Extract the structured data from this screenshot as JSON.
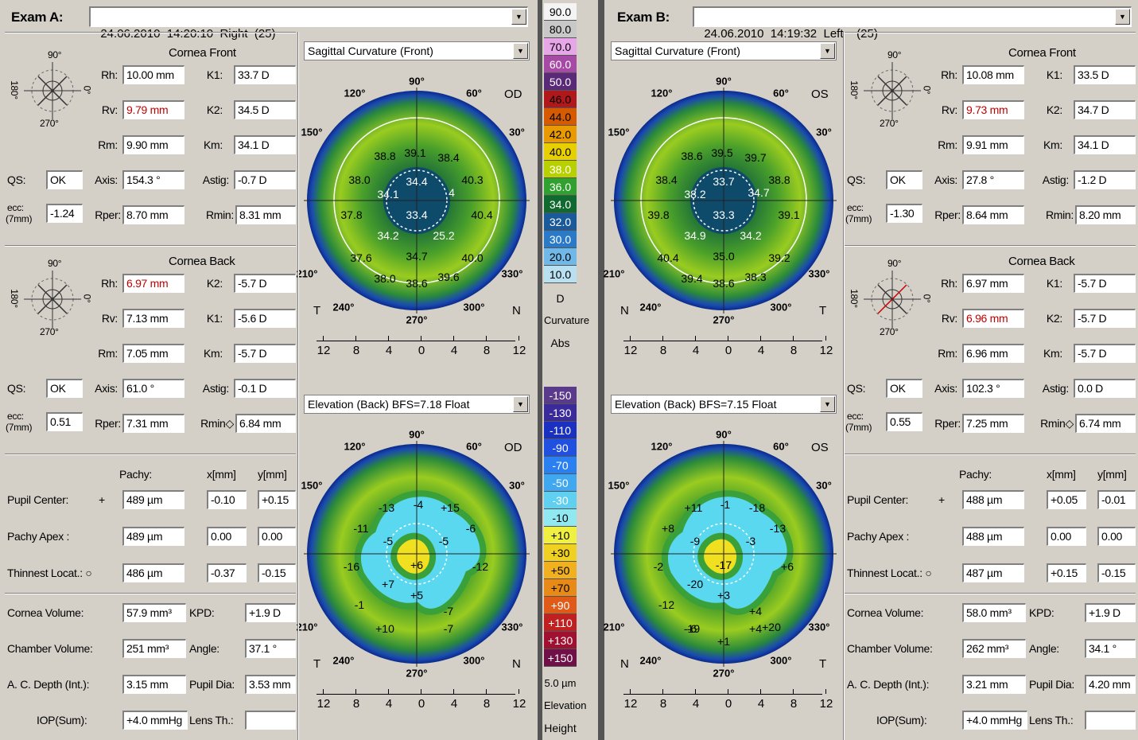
{
  "exam_a": {
    "label": "Exam A:",
    "selector": "24.06.2010  14:20:10  Right  (25)",
    "map_top": "Sagittal Curvature (Front)",
    "map_bottom": "Elevation (Back)  BFS=7.18 Float",
    "eye": "OD",
    "left_side": "T",
    "right_side": "N",
    "cornea_front": {
      "title": "Cornea Front",
      "rh_label": "Rh:",
      "rh": "10.00 mm",
      "k1_label": "K1:",
      "k1": "33.7 D",
      "rv_label": "Rv:",
      "rv": "9.79 mm",
      "k2_label": "K2:",
      "k2": "34.5 D",
      "rm_label": "Rm:",
      "rm": "9.90 mm",
      "km_label": "Km:",
      "km": "34.1 D",
      "qs_label": "QS:",
      "qs": "OK",
      "axis_label": "Axis:",
      "axis": "154.3 °",
      "astig_label": "Astig:",
      "astig": "-0.7 D",
      "ecc_label": "ecc:",
      "ecc_sub": "(7mm)",
      "ecc": "-1.24",
      "rper_label": "Rper:",
      "rper": "8.70 mm",
      "rmin_label": "Rmin:",
      "rmin": "8.31 mm"
    },
    "cornea_back": {
      "title": "Cornea Back",
      "rh_label": "Rh:",
      "rh": "6.97 mm",
      "k1_label": "K2:",
      "k1": "-5.7 D",
      "rv_label": "Rv:",
      "rv": "7.13 mm",
      "k2_label": "K1:",
      "k2": "-5.6 D",
      "rm_label": "Rm:",
      "rm": "7.05 mm",
      "km_label": "Km:",
      "km": "-5.7 D",
      "qs_label": "QS:",
      "qs": "OK",
      "axis_label": "Axis:",
      "axis": "61.0 °",
      "astig_label": "Astig:",
      "astig": "-0.1 D",
      "ecc_label": "ecc:",
      "ecc_sub": "(7mm)",
      "ecc": "0.51",
      "rper_label": "Rper:",
      "rper": "7.31 mm",
      "rmin_label": "Rmin◇",
      "rmin": "6.84 mm"
    },
    "pachy": {
      "h_pachy": "Pachy:",
      "h_x": "x[mm]",
      "h_y": "y[mm]",
      "pupil_label": "Pupil Center:",
      "pupil_sym": "+",
      "pupil": "489 µm",
      "pupil_x": "-0.10",
      "pupil_y": "+0.15",
      "apex_label": "Pachy Apex :",
      "apex": "489 µm",
      "apex_x": "0.00",
      "apex_y": "0.00",
      "thin_label": "Thinnest Locat.: ○",
      "thin": "486 µm",
      "thin_x": "-0.37",
      "thin_y": "-0.15"
    },
    "volume": {
      "cv_label": "Cornea Volume:",
      "cv": "57.9 mm³",
      "kpd_label": "KPD:",
      "kpd": "+1.9 D",
      "chv_label": "Chamber Volume:",
      "chv": "251 mm³",
      "angle_label": "Angle:",
      "angle": "37.1 °",
      "acd_label": "A. C. Depth (Int.):",
      "acd": "3.15 mm",
      "pd_label": "Pupil Dia:",
      "pd": "3.53 mm",
      "iop_label": "IOP(Sum):",
      "iop": "+4.0 mmHg",
      "lens_label": "Lens Th.:",
      "lens": ""
    },
    "curv_values": [
      "38.8",
      "39.1",
      "38.4",
      "38.0",
      "34.4",
      "40.3",
      "34.1",
      "4",
      "37.8",
      "33.4",
      "40.4",
      "34.2",
      "25.2",
      "37.6",
      "34.7",
      "40.0",
      "38.0",
      "38.6",
      "39.6"
    ],
    "elev_values": [
      "-13",
      "-4",
      "+15",
      "-11",
      "-5",
      "-6",
      "-5",
      "-16",
      "+6",
      "-12",
      "+7",
      "+5",
      "-1",
      "-7",
      "+10",
      "-7"
    ]
  },
  "exam_b": {
    "label": "Exam B:",
    "selector": "24.06.2010  14:19:32  Left    (25)",
    "map_top": "Sagittal Curvature (Front)",
    "map_bottom": "Elevation (Back)  BFS=7.15 Float",
    "eye": "OS",
    "left_side": "N",
    "right_side": "T",
    "cornea_front": {
      "title": "Cornea Front",
      "rh_label": "Rh:",
      "rh": "10.08 mm",
      "k1_label": "K1:",
      "k1": "33.5 D",
      "rv_label": "Rv:",
      "rv": "9.73 mm",
      "k2_label": "K2:",
      "k2": "34.7 D",
      "rm_label": "Rm:",
      "rm": "9.91 mm",
      "km_label": "Km:",
      "km": "34.1 D",
      "qs_label": "QS:",
      "qs": "OK",
      "axis_label": "Axis:",
      "axis": "27.8 °",
      "astig_label": "Astig:",
      "astig": "-1.2 D",
      "ecc_label": "ecc:",
      "ecc_sub": "(7mm)",
      "ecc": "-1.30",
      "rper_label": "Rper:",
      "rper": "8.64 mm",
      "rmin_label": "Rmin:",
      "rmin": "8.20 mm"
    },
    "cornea_back": {
      "title": "Cornea Back",
      "rh_label": "Rh:",
      "rh": "6.97 mm",
      "k1_label": "K1:",
      "k1": "-5.7 D",
      "rv_label": "Rv:",
      "rv": "6.96 mm",
      "k2_label": "K2:",
      "k2": "-5.7 D",
      "rm_label": "Rm:",
      "rm": "6.96 mm",
      "km_label": "Km:",
      "km": "-5.7 D",
      "qs_label": "QS:",
      "qs": "OK",
      "axis_label": "Axis:",
      "axis": "102.3 °",
      "astig_label": "Astig:",
      "astig": "0.0 D",
      "ecc_label": "ecc:",
      "ecc_sub": "(7mm)",
      "ecc": "0.55",
      "rper_label": "Rper:",
      "rper": "7.25 mm",
      "rmin_label": "Rmin◇",
      "rmin": "6.74 mm"
    },
    "pachy": {
      "h_pachy": "Pachy:",
      "h_x": "x[mm]",
      "h_y": "y[mm]",
      "pupil_label": "Pupil Center:",
      "pupil_sym": "+",
      "pupil": "488 µm",
      "pupil_x": "+0.05",
      "pupil_y": "-0.01",
      "apex_label": "Pachy Apex :",
      "apex": "488 µm",
      "apex_x": "0.00",
      "apex_y": "0.00",
      "thin_label": "Thinnest Locat.: ○",
      "thin": "487 µm",
      "thin_x": "+0.15",
      "thin_y": "-0.15"
    },
    "volume": {
      "cv_label": "Cornea Volume:",
      "cv": "58.0 mm³",
      "kpd_label": "KPD:",
      "kpd": "+1.9 D",
      "chv_label": "Chamber Volume:",
      "chv": "262 mm³",
      "angle_label": "Angle:",
      "angle": "34.1 °",
      "acd_label": "A. C. Depth (Int.):",
      "acd": "3.21 mm",
      "pd_label": "Pupil Dia:",
      "pd": "4.20 mm",
      "iop_label": "IOP(Sum):",
      "iop": "+4.0 mmHg",
      "lens_label": "Lens Th.:",
      "lens": ""
    },
    "curv_values": [
      "38.6",
      "39.5",
      "39.7",
      "38.4",
      "33.7",
      "38.8",
      "38.2",
      "34.7",
      "39.8",
      "33.3",
      "39.1",
      "34.9",
      "34.2",
      "40.4",
      "35.0",
      "39.2",
      "39.4",
      "38.6",
      "38.3"
    ],
    "elev_values": [
      "+11",
      "-1",
      "-18",
      "+8",
      "-9",
      "-13",
      "-3",
      "-2",
      "-17",
      "+6",
      "-20",
      "+3",
      "-12",
      "+4",
      "-6",
      "+4",
      "-19",
      "+20",
      "+1"
    ]
  },
  "angles": {
    "a90": "90°",
    "a120": "120°",
    "a60": "60°",
    "a150": "150°",
    "a30": "30°",
    "a210": "210°",
    "a330": "330°",
    "a240": "240°",
    "a300": "300°",
    "a270": "270°"
  },
  "compass": {
    "n90": "90°",
    "n180": "180°",
    "n0": "0°",
    "n270": "270°"
  },
  "scale_ticks": [
    "12",
    "8",
    "4",
    "0",
    "4",
    "8",
    "12"
  ],
  "curv_scale": {
    "labels": [
      "90.0",
      "80.0",
      "70.0",
      "60.0",
      "50.0",
      "46.0",
      "44.0",
      "42.0",
      "40.0",
      "38.0",
      "36.0",
      "34.0",
      "32.0",
      "30.0",
      "20.0",
      "10.0"
    ],
    "colors": [
      "#f4f4f4",
      "#c8c8c8",
      "#e7a6e7",
      "#a64aa6",
      "#5a2a78",
      "#b0181c",
      "#d55a00",
      "#e89a00",
      "#e8d000",
      "#b8d000",
      "#30a030",
      "#106a30",
      "#1a5a9a",
      "#2a7ac8",
      "#70b8e8",
      "#b8e0f0"
    ],
    "unit": "D",
    "type": "Curvature",
    "mode": "Abs"
  },
  "elev_scale": {
    "labels": [
      "-150",
      "-130",
      "-110",
      "-90",
      "-70",
      "-50",
      "-30",
      "-10",
      "+10",
      "+30",
      "+50",
      "+70",
      "+90",
      "+110",
      "+130",
      "+150"
    ],
    "colors": [
      "#5a3a8a",
      "#3a2a9a",
      "#1a30c0",
      "#2050e0",
      "#2a80f0",
      "#40a8f0",
      "#60d0f0",
      "#90e8f0",
      "#f0f040",
      "#f0d020",
      "#f0b020",
      "#e88a18",
      "#e05a18",
      "#c02020",
      "#a01030",
      "#701048"
    ],
    "step": "5.0 µm",
    "type": "Elevation",
    "mode": "Height"
  }
}
